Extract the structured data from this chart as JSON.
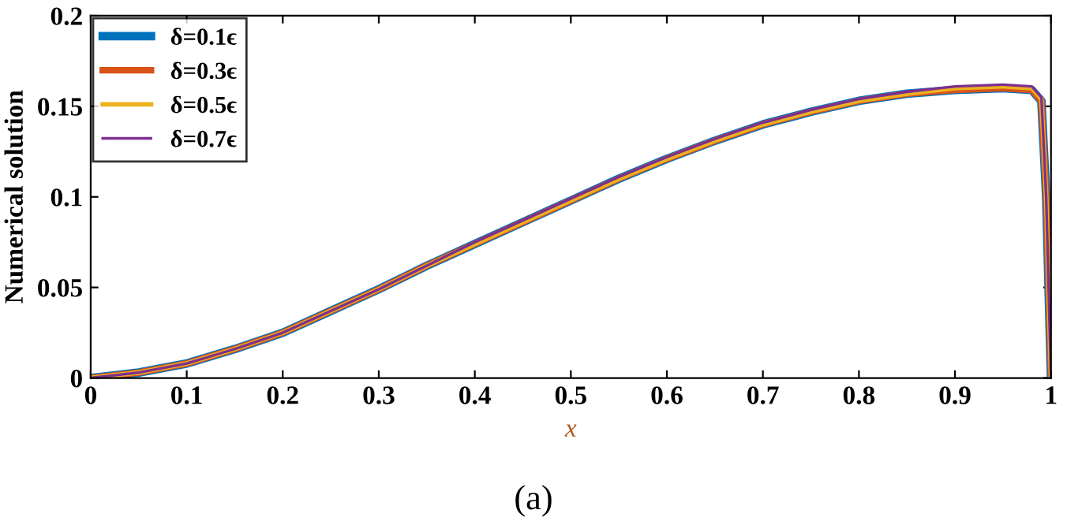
{
  "chart_data": {
    "type": "line",
    "xlabel": "x",
    "ylabel": "Numerical solution",
    "annotations": [
      "(a)"
    ],
    "xlim": [
      0,
      1
    ],
    "ylim": [
      0,
      0.2
    ],
    "xticks": [
      0,
      0.1,
      0.2,
      0.3,
      0.4,
      0.5,
      0.6,
      0.7,
      0.8,
      0.9,
      1
    ],
    "yticks": [
      0,
      0.05,
      0.1,
      0.15,
      0.2
    ],
    "x": [
      0,
      0.05,
      0.1,
      0.15,
      0.2,
      0.25,
      0.3,
      0.35,
      0.4,
      0.45,
      0.5,
      0.55,
      0.6,
      0.65,
      0.7,
      0.75,
      0.8,
      0.85,
      0.9,
      0.95,
      0.98,
      0.99,
      0.995,
      1
    ],
    "grid": false,
    "legend": "top left",
    "marker": "none",
    "line_style": "solid",
    "series": [
      {
        "name": "δ=0.1ϵ",
        "color": "#0072bd",
        "values": [
          0,
          0.003,
          0.008,
          0.016,
          0.025,
          0.037,
          0.049,
          0.062,
          0.074,
          0.086,
          0.098,
          0.11,
          0.121,
          0.131,
          0.14,
          0.147,
          0.153,
          0.157,
          0.159,
          0.16,
          0.159,
          0.153,
          0.1,
          0
        ]
      },
      {
        "name": "δ=0.3ϵ",
        "color": "#d95319",
        "values": [
          0,
          0.003,
          0.008,
          0.016,
          0.025,
          0.037,
          0.049,
          0.062,
          0.074,
          0.086,
          0.098,
          0.11,
          0.121,
          0.131,
          0.14,
          0.147,
          0.153,
          0.157,
          0.159,
          0.16,
          0.159,
          0.153,
          0.1,
          0
        ]
      },
      {
        "name": "δ=0.5ϵ",
        "color": "#edb120",
        "values": [
          0,
          0.003,
          0.008,
          0.016,
          0.025,
          0.037,
          0.049,
          0.062,
          0.074,
          0.086,
          0.098,
          0.11,
          0.121,
          0.131,
          0.14,
          0.147,
          0.153,
          0.157,
          0.16,
          0.161,
          0.16,
          0.154,
          0.1,
          0
        ]
      },
      {
        "name": "δ=0.7ϵ",
        "color": "#7e2f8e",
        "values": [
          0,
          0.003,
          0.008,
          0.016,
          0.025,
          0.037,
          0.049,
          0.062,
          0.075,
          0.087,
          0.099,
          0.111,
          0.122,
          0.132,
          0.141,
          0.148,
          0.154,
          0.158,
          0.161,
          0.162,
          0.161,
          0.155,
          0.1,
          0
        ]
      }
    ]
  }
}
